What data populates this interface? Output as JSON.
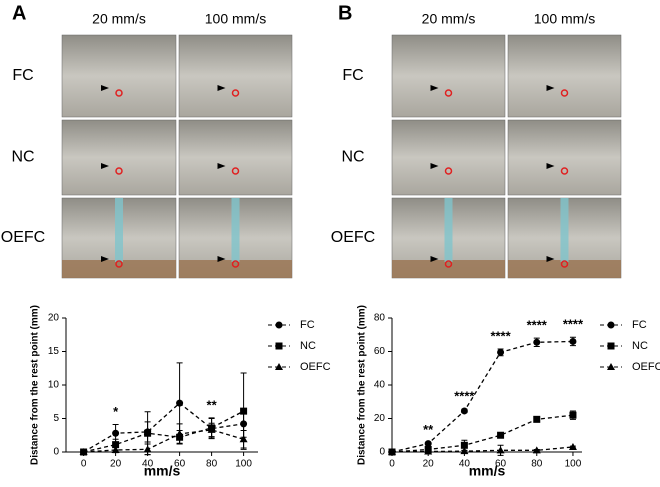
{
  "figure": {
    "panel_labels": [
      "A",
      "B"
    ],
    "column_labels": [
      "20 mm/s",
      "100 mm/s"
    ],
    "row_labels": [
      "FC",
      "NC",
      "OEFC"
    ]
  },
  "chart_data": [
    {
      "type": "line",
      "ylabel": "Distance from the rest point (mm)",
      "xlabel": "mm/s",
      "x": [
        0,
        20,
        40,
        60,
        80,
        100
      ],
      "xlim": [
        -11,
        109
      ],
      "xticks": [
        0,
        20,
        40,
        60,
        80,
        100
      ],
      "ylim": [
        0,
        20
      ],
      "yticks": [
        0,
        5,
        10,
        15,
        20
      ],
      "line_style": "dashed",
      "legend": "right",
      "series": [
        {
          "name": "FC",
          "color": "#000000",
          "marker": "circle",
          "values": [
            0,
            2.8,
            3.0,
            7.3,
            3.5,
            4.2
          ],
          "errors": [
            0,
            1.3,
            1.5,
            6.0,
            1.5,
            2.0
          ]
        },
        {
          "name": "NC",
          "color": "#000000",
          "marker": "square",
          "values": [
            0,
            1.1,
            2.8,
            2.2,
            3.6,
            6.1
          ],
          "errors": [
            0,
            0.8,
            3.2,
            1.0,
            1.5,
            5.7
          ]
        },
        {
          "name": "OEFC",
          "color": "#000000",
          "marker": "triangle",
          "values": [
            0,
            0.3,
            0.4,
            2.7,
            3.3,
            1.9
          ],
          "errors": [
            0,
            0.4,
            0.8,
            1.5,
            1.0,
            1.3
          ]
        }
      ],
      "annotations": [
        {
          "text": "*",
          "x": 20
        },
        {
          "text": "**",
          "x": 80
        }
      ]
    },
    {
      "type": "line",
      "ylabel": "Distance from the rest point (mm)",
      "xlabel": "mm/s",
      "x": [
        0,
        20,
        40,
        60,
        80,
        100
      ],
      "xlim": [
        0,
        105
      ],
      "xticks": [
        0,
        20,
        40,
        60,
        80,
        100
      ],
      "ylim": [
        0,
        80
      ],
      "yticks": [
        0,
        20,
        40,
        60,
        80
      ],
      "line_style": "dashed",
      "legend": "right",
      "series": [
        {
          "name": "FC",
          "color": "#000000",
          "marker": "circle",
          "values": [
            0,
            5,
            24.5,
            59.5,
            65.5,
            66
          ],
          "errors": [
            0,
            0.5,
            1,
            2,
            2.5,
            2.5
          ]
        },
        {
          "name": "NC",
          "color": "#000000",
          "marker": "square",
          "values": [
            0,
            1.5,
            4,
            10,
            19.5,
            22
          ],
          "errors": [
            0,
            0.5,
            3,
            1,
            1,
            2.5
          ]
        },
        {
          "name": "OEFC",
          "color": "#000000",
          "marker": "triangle",
          "values": [
            0,
            0.3,
            0.5,
            1,
            1,
            3
          ],
          "errors": [
            0,
            0.3,
            0.5,
            3,
            0.5,
            0.5
          ]
        }
      ],
      "annotations": [
        {
          "text": "**",
          "x": 20
        },
        {
          "text": "****",
          "x": 40
        },
        {
          "text": "****",
          "x": 60
        },
        {
          "text": "****",
          "x": 80
        },
        {
          "text": "****",
          "x": 100
        }
      ]
    }
  ]
}
